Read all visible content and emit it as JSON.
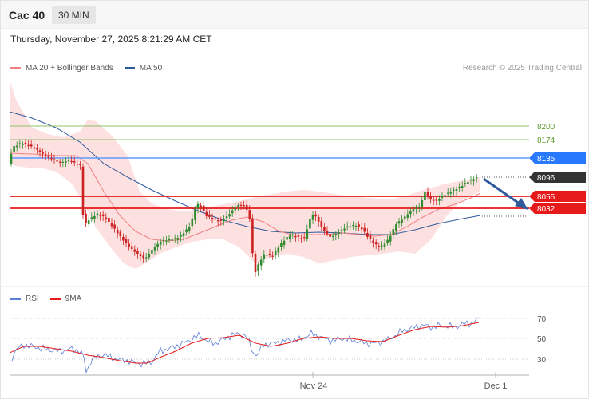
{
  "header": {
    "instrument": "Cac 40",
    "timeframe": "30 MIN",
    "timestamp": "Thursday, November 27, 2025 8:21:29 AM CET"
  },
  "legend": {
    "ma20": "MA 20 + Bollinger Bands",
    "ma50": "MA 50",
    "copyright": "Research © 2025 Trading Central"
  },
  "rsi_legend": {
    "rsi": "RSI",
    "ma9": "9MA"
  },
  "colors": {
    "ma20": "#f08080",
    "ma50": "#2f5b9c",
    "bollinger_fill": "#fde0e0",
    "candle_up": "#2e8b2e",
    "candle_down": "#cc2222",
    "resistance": "#2979ff",
    "support": "#e61a1a",
    "target_green": "#6aa84f",
    "arrow": "#2f5b9c",
    "current": "#333333",
    "rsi": "#5b7fd6",
    "rsi_ma": "#e61a1a"
  },
  "levels": {
    "l8200": "8200",
    "l8174": "8174",
    "l8135": "8135",
    "l8096": "8096",
    "l8055": "8055",
    "l8032": "8032"
  },
  "x_axis": {
    "label_nov24": "Nov 24",
    "label_dec1": "Dec 1"
  },
  "rsi_axis": {
    "t70": "70",
    "t50": "50",
    "t30": "30"
  }
}
